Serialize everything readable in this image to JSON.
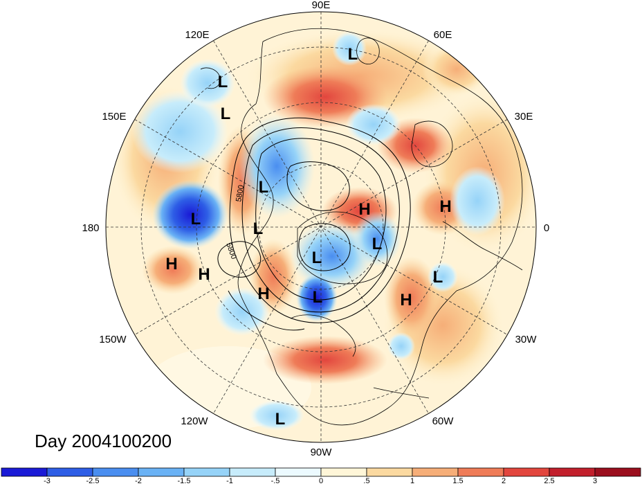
{
  "map": {
    "projection": "north polar stereographic",
    "day_label": "Day 2004100200",
    "longitude_labels": [
      "90E",
      "60E",
      "30E",
      "0",
      "30W",
      "60W",
      "90W",
      "120W",
      "150W",
      "180",
      "150E",
      "120E"
    ],
    "contour_labels": [
      "5800",
      "5800"
    ],
    "pressure_centers": [
      {
        "type": "L",
        "label": "L"
      },
      {
        "type": "L",
        "label": "L"
      },
      {
        "type": "L",
        "label": "L"
      },
      {
        "type": "L",
        "label": "L"
      },
      {
        "type": "L",
        "label": "L"
      },
      {
        "type": "L",
        "label": "L"
      },
      {
        "type": "L",
        "label": "L"
      },
      {
        "type": "L",
        "label": "L"
      },
      {
        "type": "L",
        "label": "L"
      },
      {
        "type": "L",
        "label": "L"
      },
      {
        "type": "L",
        "label": "L"
      },
      {
        "type": "H",
        "label": "H"
      },
      {
        "type": "H",
        "label": "H"
      },
      {
        "type": "H",
        "label": "H"
      },
      {
        "type": "H",
        "label": "H"
      },
      {
        "type": "H",
        "label": "H"
      },
      {
        "type": "H",
        "label": "H"
      }
    ]
  },
  "colorbar": {
    "tick_labels": [
      "-3",
      "-2.5",
      "-2",
      "-1.5",
      "-1",
      "-.5",
      "0",
      ".5",
      "1",
      "1.5",
      "2",
      "2.5",
      "3"
    ],
    "colors": [
      "#1a1ad6",
      "#2e5ee6",
      "#4a8ef0",
      "#6ab2f5",
      "#96d3f8",
      "#c7ecfb",
      "#ecfaff",
      "#fff6d8",
      "#fbd9a0",
      "#f6ae78",
      "#ef7c58",
      "#e2463e",
      "#c21f2c",
      "#9b0f1e"
    ]
  }
}
